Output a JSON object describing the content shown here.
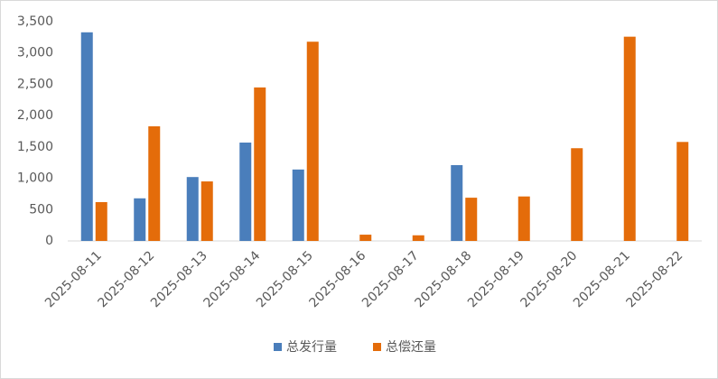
{
  "chart_data": {
    "type": "bar",
    "categories": [
      "2025-08-11",
      "2025-08-12",
      "2025-08-13",
      "2025-08-14",
      "2025-08-15",
      "2025-08-16",
      "2025-08-17",
      "2025-08-18",
      "2025-08-19",
      "2025-08-20",
      "2025-08-21",
      "2025-08-22"
    ],
    "series": [
      {
        "name": "总发行量",
        "color": "#4a7ebb",
        "values": [
          3330,
          680,
          1020,
          1570,
          1140,
          0,
          0,
          1210,
          0,
          0,
          0,
          0
        ]
      },
      {
        "name": "总偿还量",
        "color": "#e46c0a",
        "values": [
          620,
          1830,
          950,
          2450,
          3180,
          100,
          90,
          690,
          710,
          1480,
          3260,
          1580
        ]
      }
    ],
    "ylim": [
      0,
      3500
    ],
    "yticks": [
      0,
      500,
      {
        "value": 1000,
        "label": "1,000"
      },
      {
        "value": 1500,
        "label": "1,500"
      },
      {
        "value": 2000,
        "label": "2,000"
      },
      {
        "value": 2500,
        "label": "2,500"
      },
      {
        "value": 3000,
        "label": "3,000"
      },
      {
        "value": 3500,
        "label": "3,500"
      }
    ],
    "grid": false,
    "legend": "bottom"
  }
}
